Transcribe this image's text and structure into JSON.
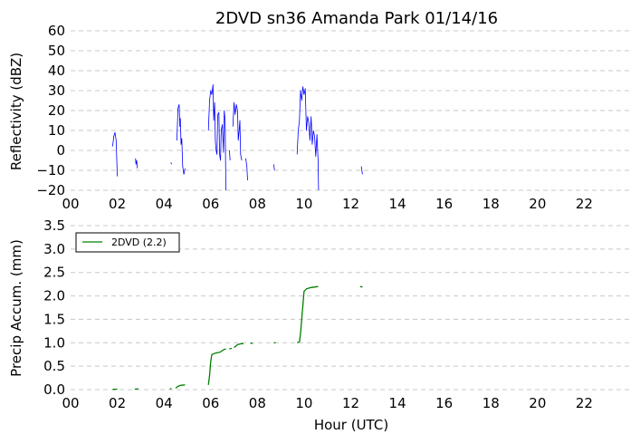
{
  "chart_data": [
    {
      "type": "line",
      "title": "2DVD sn36 Amanda Park 01/14/16",
      "ylabel": "Reflectivity (dBZ)",
      "xlabel": "",
      "xlim": [
        0,
        24
      ],
      "ylim": [
        -20,
        60
      ],
      "grid": true,
      "xticks": [
        "00",
        "02",
        "04",
        "06",
        "08",
        "10",
        "12",
        "14",
        "16",
        "18",
        "20",
        "22"
      ],
      "yticks": [
        "60",
        "50",
        "40",
        "30",
        "20",
        "10",
        "0",
        "−10",
        "−20"
      ],
      "series": [
        {
          "color": "#0000ff",
          "segments": [
            [
              [
                1.8,
                2
              ],
              [
                1.85,
                7
              ],
              [
                1.9,
                9
              ],
              [
                1.95,
                5
              ],
              [
                2.0,
                -13
              ]
            ],
            [
              [
                2.78,
                -4
              ],
              [
                2.8,
                -7
              ],
              [
                2.83,
                -5
              ],
              [
                2.86,
                -9
              ]
            ],
            [
              [
                4.3,
                -6
              ],
              [
                4.32,
                -7
              ]
            ],
            [
              [
                4.55,
                5
              ],
              [
                4.6,
                21
              ],
              [
                4.65,
                23
              ],
              [
                4.68,
                12
              ],
              [
                4.7,
                16
              ],
              [
                4.73,
                3
              ],
              [
                4.76,
                6
              ],
              [
                4.8,
                -8
              ],
              [
                4.85,
                -12
              ],
              [
                4.9,
                -9
              ]
            ],
            [
              [
                5.9,
                10
              ],
              [
                5.95,
                25
              ],
              [
                6.0,
                30
              ],
              [
                6.05,
                28
              ],
              [
                6.1,
                33
              ],
              [
                6.13,
                15
              ],
              [
                6.17,
                24
              ],
              [
                6.2,
                5
              ],
              [
                6.23,
                0
              ],
              [
                6.27,
                -2
              ],
              [
                6.3,
                18
              ],
              [
                6.35,
                19
              ],
              [
                6.38,
                -2
              ],
              [
                6.42,
                -5
              ],
              [
                6.45,
                10
              ],
              [
                6.5,
                13
              ],
              [
                6.55,
                -1
              ],
              [
                6.58,
                20
              ],
              [
                6.62,
                15
              ],
              [
                6.65,
                -20
              ]
            ],
            [
              [
                6.8,
                0
              ],
              [
                6.83,
                -5
              ]
            ],
            [
              [
                6.95,
                12
              ],
              [
                7.0,
                24
              ],
              [
                7.05,
                18
              ],
              [
                7.1,
                23
              ],
              [
                7.15,
                20
              ],
              [
                7.18,
                5
              ],
              [
                7.22,
                10
              ],
              [
                7.25,
                15
              ],
              [
                7.28,
                -2
              ],
              [
                7.33,
                -5
              ]
            ],
            [
              [
                7.5,
                -4
              ],
              [
                7.55,
                -8
              ],
              [
                7.58,
                -15
              ]
            ],
            [
              [
                8.7,
                -7
              ],
              [
                8.73,
                -10
              ]
            ],
            [
              [
                9.7,
                -2
              ],
              [
                9.75,
                10
              ],
              [
                9.8,
                15
              ],
              [
                9.85,
                30
              ],
              [
                9.9,
                25
              ],
              [
                9.95,
                32
              ],
              [
                10.0,
                28
              ],
              [
                10.05,
                31
              ],
              [
                10.1,
                10
              ],
              [
                10.15,
                17
              ],
              [
                10.2,
                14
              ],
              [
                10.25,
                5
              ],
              [
                10.3,
                17
              ],
              [
                10.35,
                3
              ],
              [
                10.4,
                10
              ],
              [
                10.45,
                7
              ],
              [
                10.5,
                -3
              ],
              [
                10.55,
                8
              ],
              [
                10.6,
                -5
              ],
              [
                10.62,
                -20
              ]
            ],
            [
              [
                12.45,
                -8
              ],
              [
                12.5,
                -12
              ]
            ]
          ]
        }
      ]
    },
    {
      "type": "line",
      "title": "",
      "ylabel": "Precip Accum. (mm)",
      "xlabel": "Hour (UTC)",
      "xlim": [
        0,
        24
      ],
      "ylim": [
        0,
        3.5
      ],
      "grid": true,
      "legend": "top-left",
      "xticks": [
        "00",
        "02",
        "04",
        "06",
        "08",
        "10",
        "12",
        "14",
        "16",
        "18",
        "20",
        "22"
      ],
      "yticks": [
        "3.5",
        "3.0",
        "2.5",
        "2.0",
        "1.5",
        "1.0",
        "0.5",
        "0.0"
      ],
      "series": [
        {
          "name": "2DVD (2.2)",
          "color": "#008000",
          "segments": [
            [
              [
                1.8,
                0.005
              ],
              [
                2.0,
                0.01
              ]
            ],
            [
              [
                2.75,
                0.01
              ],
              [
                2.9,
                0.015
              ]
            ],
            [
              [
                4.25,
                0.02
              ],
              [
                4.32,
                0.02
              ]
            ],
            [
              [
                4.5,
                0.03
              ],
              [
                4.6,
                0.07
              ],
              [
                4.7,
                0.09
              ],
              [
                4.9,
                0.1
              ]
            ],
            [
              [
                5.9,
                0.1
              ],
              [
                5.95,
                0.3
              ],
              [
                6.0,
                0.6
              ],
              [
                6.05,
                0.75
              ],
              [
                6.2,
                0.78
              ],
              [
                6.4,
                0.8
              ],
              [
                6.55,
                0.85
              ],
              [
                6.65,
                0.87
              ]
            ],
            [
              [
                6.8,
                0.87
              ],
              [
                6.9,
                0.88
              ]
            ],
            [
              [
                7.0,
                0.9
              ],
              [
                7.15,
                0.96
              ],
              [
                7.3,
                0.98
              ],
              [
                7.4,
                0.98
              ]
            ],
            [
              [
                7.7,
                0.99
              ],
              [
                7.8,
                0.99
              ]
            ],
            [
              [
                8.7,
                1.0
              ],
              [
                8.78,
                1.0
              ]
            ],
            [
              [
                9.7,
                1.0
              ],
              [
                9.8,
                1.02
              ],
              [
                9.85,
                1.2
              ],
              [
                9.9,
                1.5
              ],
              [
                9.95,
                1.8
              ],
              [
                10.0,
                2.1
              ],
              [
                10.1,
                2.15
              ],
              [
                10.3,
                2.18
              ],
              [
                10.6,
                2.2
              ]
            ],
            [
              [
                12.4,
                2.2
              ],
              [
                12.5,
                2.19
              ]
            ]
          ]
        }
      ]
    }
  ]
}
